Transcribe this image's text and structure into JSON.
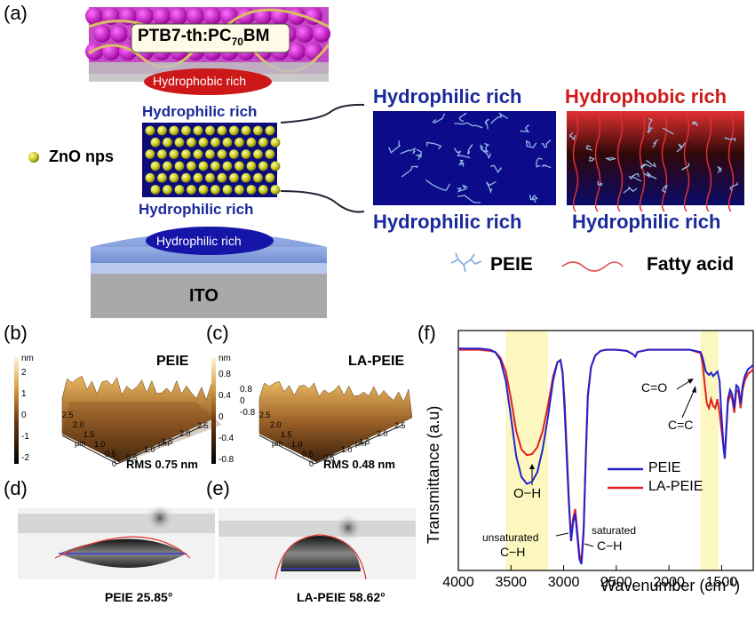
{
  "panel_a": {
    "label": "(a)",
    "top_layer": "PTB7-th:PC",
    "top_layer_sub": "70",
    "top_layer_tail": "BM",
    "hydrophobic_rich": "Hydrophobic rich",
    "hydrophilic_rich_top": "Hydrophilic rich",
    "hydrophilic_rich_bottom": "Hydrophilic rich",
    "hydrophilic_rich_ellipse": "Hydrophilic rich",
    "zno_label": "ZnO nps",
    "ito": "ITO",
    "right_left_top": "Hydrophilic rich",
    "right_right_top": "Hydrophobic rich",
    "right_left_bottom": "Hydrophilic rich",
    "right_right_bottom": "Hydrophilic rich",
    "legend_peie": "PEIE",
    "legend_fatty": "Fatty acid"
  },
  "panel_b": {
    "label": "(b)",
    "title": "PEIE",
    "unit": "nm",
    "scale_ticks": [
      "2",
      "1",
      "0",
      "-1",
      "-2"
    ],
    "rms": "RMS 0.75 nm",
    "axis_unit": "μm",
    "axis_ticks_left": [
      "2.5",
      "2.0",
      "1.5",
      "1.0",
      "0.5"
    ],
    "axis_ticks_right": [
      "0.5",
      "1.0",
      "1.5",
      "2.0",
      "2.5"
    ],
    "axis_zero": "0"
  },
  "panel_c": {
    "label": "(c)",
    "title": "LA-PEIE",
    "unit": "nm",
    "scale_ticks": [
      "0.8",
      "0.4",
      "0",
      "-0.4",
      "-0.8"
    ],
    "surface_ticks": [
      "0.8",
      "0",
      "-0.8"
    ],
    "rms": "RMS 0.48 nm",
    "axis_unit": "μm",
    "axis_ticks_left": [
      "2.5",
      "2.0",
      "1.5",
      "1.0",
      "0.5"
    ],
    "axis_ticks_right": [
      "0.5",
      "1.0",
      "1.5",
      "2.0",
      "2.5"
    ],
    "axis_zero": "0"
  },
  "panel_d": {
    "label": "(d)",
    "caption": "PEIE 25.85°"
  },
  "panel_e": {
    "label": "(e)",
    "caption": "LA-PEIE 58.62°"
  },
  "panel_f": {
    "label": "(f)",
    "ann_oh": "O−H",
    "ann_co": "C=O",
    "ann_cc": "C=C",
    "ann_unsat1": "unsaturated",
    "ann_unsat2": "C−H",
    "ann_sat1": "saturated",
    "ann_sat2": "C−H",
    "colors": {
      "peie": "#2222cc",
      "la_peie": "#e02020",
      "highlight": "#fbf7bf"
    }
  },
  "chart_data": {
    "type": "line",
    "xlabel": "Wavenumber (cm-1)",
    "ylabel": "Transmittance (a.u)",
    "xlim": [
      4000,
      1200
    ],
    "x_ticks": [
      4000,
      3500,
      3000,
      2500,
      2000,
      1500
    ],
    "highlight_bands": [
      [
        3550,
        3150
      ],
      [
        1700,
        1530
      ]
    ],
    "legend_position": "right",
    "series": [
      {
        "name": "PEIE",
        "x": [
          4000,
          3800,
          3700,
          3650,
          3600,
          3550,
          3500,
          3450,
          3400,
          3350,
          3300,
          3250,
          3200,
          3150,
          3100,
          3060,
          3030,
          3010,
          2990,
          2970,
          2950,
          2930,
          2910,
          2890,
          2870,
          2850,
          2830,
          2810,
          2790,
          2770,
          2740,
          2700,
          2650,
          2600,
          2500,
          2400,
          2340,
          2320,
          2300,
          2200,
          2000,
          1800,
          1700,
          1680,
          1650,
          1620,
          1600,
          1580,
          1560,
          1540,
          1520,
          1500,
          1480,
          1470,
          1460,
          1440,
          1420,
          1400,
          1380,
          1360,
          1340,
          1320,
          1300,
          1280,
          1250,
          1220,
          1200
        ],
        "y": [
          96.0,
          96.0,
          95.5,
          94.5,
          91.0,
          82.0,
          66.0,
          49.0,
          40.0,
          37.0,
          38.0,
          42.0,
          52.0,
          66.0,
          82.0,
          90.0,
          91.0,
          85.0,
          68.0,
          48.0,
          28.0,
          12.0,
          20.0,
          24.0,
          14.0,
          4.0,
          2.0,
          16.0,
          48.0,
          75.0,
          88.0,
          93.0,
          95.0,
          95.5,
          95.5,
          95.0,
          93.5,
          92.5,
          94.5,
          95.5,
          95.5,
          95.5,
          94.5,
          92.0,
          86.0,
          84.5,
          85.5,
          84.0,
          85.0,
          86.0,
          82.0,
          66.0,
          52.0,
          48.0,
          58.0,
          74.0,
          78.0,
          76.0,
          70.0,
          80.0,
          79.0,
          72.0,
          80.0,
          84.0,
          87.0,
          88.0,
          89.0
        ]
      },
      {
        "name": "LA-PEIE",
        "x": [
          4000,
          3800,
          3700,
          3650,
          3600,
          3550,
          3500,
          3450,
          3400,
          3350,
          3300,
          3250,
          3200,
          3150,
          3100,
          3060,
          3030,
          3010,
          2990,
          2970,
          2950,
          2930,
          2910,
          2890,
          2870,
          2850,
          2830,
          2810,
          2790,
          2770,
          2740,
          2700,
          2650,
          2600,
          2500,
          2400,
          2340,
          2320,
          2300,
          2200,
          2000,
          1800,
          1700,
          1680,
          1660,
          1640,
          1620,
          1600,
          1580,
          1560,
          1540,
          1520,
          1500,
          1480,
          1470,
          1460,
          1440,
          1420,
          1400,
          1380,
          1360,
          1340,
          1320,
          1300,
          1280,
          1250,
          1220,
          1200
        ],
        "y": [
          95.5,
          95.5,
          95.0,
          94.5,
          92.0,
          86.0,
          74.0,
          60.0,
          52.0,
          49.5,
          50.0,
          53.0,
          60.0,
          71.0,
          84.0,
          90.0,
          91.0,
          86.0,
          72.0,
          52.0,
          30.0,
          14.0,
          22.0,
          26.0,
          16.0,
          6.0,
          4.0,
          18.0,
          50.0,
          76.0,
          88.0,
          93.0,
          95.0,
          95.5,
          95.5,
          95.0,
          93.5,
          92.5,
          94.5,
          95.5,
          95.5,
          95.5,
          94.0,
          89.0,
          80.0,
          72.0,
          70.0,
          74.0,
          71.0,
          70.0,
          74.0,
          68.0,
          60.0,
          52.0,
          49.0,
          56.0,
          72.0,
          76.0,
          74.0,
          68.0,
          78.0,
          77.0,
          70.0,
          78.0,
          82.0,
          85.0,
          86.0,
          87.0
        ]
      }
    ]
  }
}
